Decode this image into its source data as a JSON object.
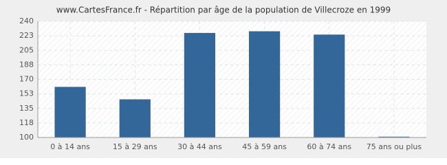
{
  "chart_data": {
    "type": "bar",
    "title": "www.CartesFrance.fr - Répartition par âge de la population de Villecroze en 1999",
    "categories": [
      "0 à 14 ans",
      "15 à 29 ans",
      "30 à 44 ans",
      "45 à 59 ans",
      "60 à 74 ans",
      "75 ans ou plus"
    ],
    "values": [
      161,
      146,
      226,
      228,
      224,
      101
    ],
    "color": "#336699",
    "ylim": [
      100,
      240
    ],
    "yticks": [
      100,
      {
        "value": 117.5,
        "label": "118"
      },
      135,
      {
        "value": 152.5,
        "label": "153"
      },
      170,
      {
        "value": 187.5,
        "label": "188"
      },
      205,
      {
        "value": 222.5,
        "label": "223"
      },
      240
    ],
    "grid": true
  }
}
